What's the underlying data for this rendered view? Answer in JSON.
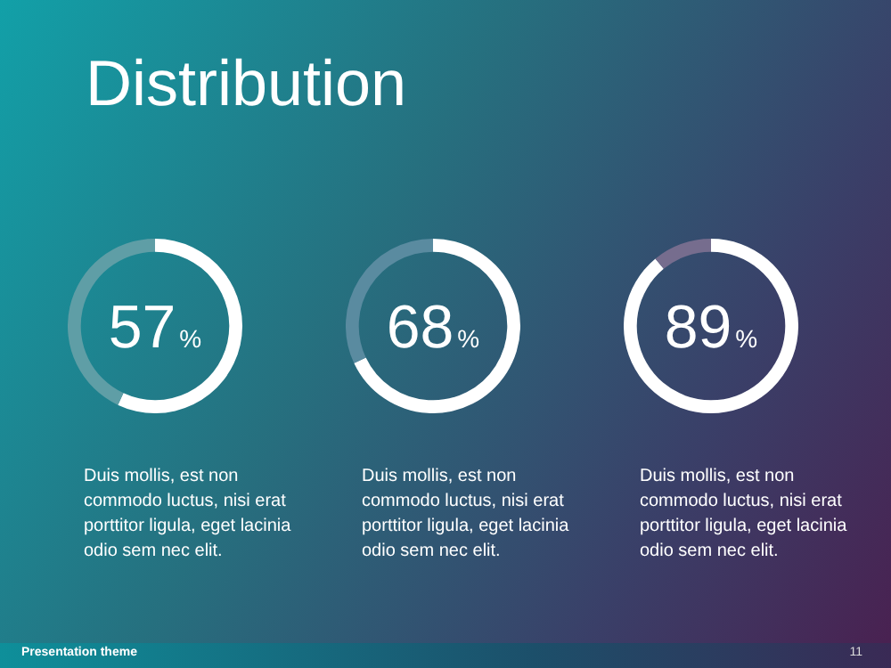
{
  "chart_data": [
    {
      "type": "donut",
      "title": "Distribution",
      "categories": [
        null,
        null
      ],
      "values": [
        57,
        43
      ],
      "colors": [
        "#ffffff",
        "#5f9ea6"
      ],
      "value_labels": [
        "57%",
        null
      ],
      "annotations": [
        "Duis mollis, est non commodo luctus, nisi erat porttitor ligula, eget lacinia odio sem nec elit.",
        "Presentation theme",
        "11"
      ]
    },
    {
      "type": "donut",
      "categories": [
        null,
        null
      ],
      "values": [
        68,
        32
      ],
      "colors": [
        "#ffffff",
        "#5a8ba0"
      ],
      "value_labels": [
        "68%",
        null
      ],
      "annotations": [
        "Duis mollis, est non commodo luctus, nisi erat porttitor ligula, eget lacinia odio sem nec elit."
      ]
    },
    {
      "type": "donut",
      "categories": [
        null,
        null
      ],
      "values": [
        89,
        11
      ],
      "colors": [
        "#ffffff",
        "#766d8e"
      ],
      "value_labels": [
        "89%",
        null
      ],
      "annotations": [
        "Duis mollis, est non commodo luctus, nisi erat porttitor ligula, eget lacinia odio sem nec elit."
      ]
    }
  ]
}
